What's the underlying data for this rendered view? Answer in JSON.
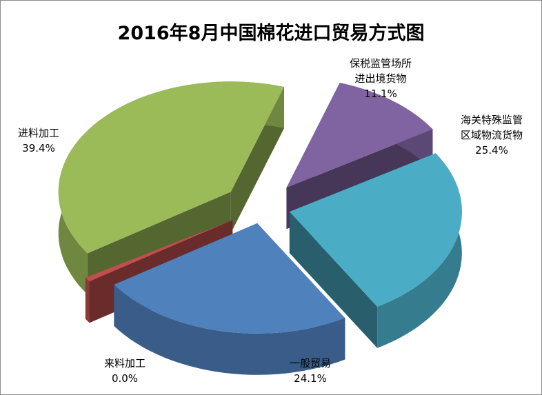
{
  "chart_data": {
    "type": "pie",
    "title": "2016年8月中国棉花进口贸易方式图",
    "three_d": true,
    "exploded": true,
    "legend": "none",
    "slices": [
      {
        "label_lines": [
          "保税监管场所",
          "进出境货物"
        ],
        "value": 11.1,
        "percent_label": "11.1%",
        "color": "#8064a2"
      },
      {
        "label_lines": [
          "海关特殊监管",
          "区域物流货物"
        ],
        "value": 25.4,
        "percent_label": "25.4%",
        "color": "#4bacc6"
      },
      {
        "label_lines": [
          "一般贸易"
        ],
        "value": 24.1,
        "percent_label": "24.1%",
        "color": "#4f81bd"
      },
      {
        "label_lines": [
          "来料加工"
        ],
        "value": 0.0,
        "percent_label": "0.0%",
        "color": "#c0504d"
      },
      {
        "label_lines": [
          "进料加工"
        ],
        "value": 39.4,
        "percent_label": "39.4%",
        "color": "#9bbb59"
      }
    ]
  }
}
